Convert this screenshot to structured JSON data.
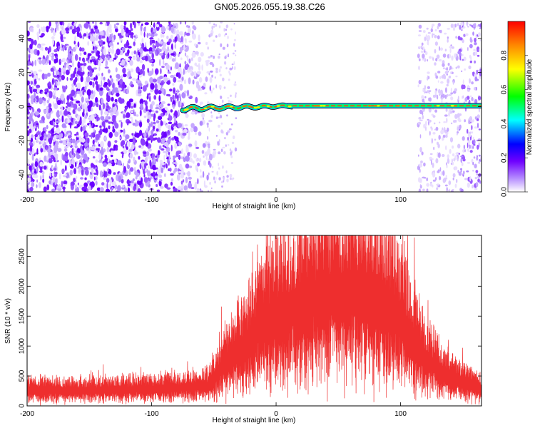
{
  "title": "GN05.2026.055.19.38.C26",
  "chart_data": [
    {
      "type": "heatmap",
      "xlabel": "Height of straight line (km)",
      "ylabel": "Frequency (Hz)",
      "xlim": [
        -200,
        165
      ],
      "ylim": [
        -50,
        50
      ],
      "xticks": [
        -200,
        -100,
        0,
        100
      ],
      "yticks": [
        -40,
        -20,
        0,
        20,
        40
      ],
      "colorbar": {
        "label": "Normalized spectral amplitude",
        "range": [
          0,
          1
        ],
        "ticks": [
          "0.0",
          "0.2",
          "0.4",
          "0.6",
          "0.8"
        ],
        "colors": [
          "#ffffff",
          "#6f00ff",
          "#0000ff",
          "#00ffff",
          "#00ff00",
          "#ffff00",
          "#ff0000"
        ]
      },
      "features": {
        "noise_region_km": [
          -200,
          -55
        ],
        "noise_right_region_km": [
          120,
          165
        ],
        "carrier_start_km": -75,
        "carrier_frequency_hz": 0.5
      }
    },
    {
      "type": "line",
      "xlabel": "Height of straight line (km)",
      "ylabel": "SNR (10 * v/v)",
      "xlim": [
        -200,
        165
      ],
      "ylim": [
        0,
        2850
      ],
      "xticks": [
        -200,
        -100,
        0,
        100
      ],
      "yticks": [
        0,
        500,
        1000,
        1500,
        2000,
        2500
      ],
      "color": "#ee3333",
      "envelope": {
        "x": [
          -200,
          -150,
          -100,
          -70,
          -55,
          -45,
          -35,
          -25,
          -15,
          -5,
          5,
          20,
          40,
          60,
          80,
          100,
          120,
          140,
          165
        ],
        "y": [
          300,
          300,
          330,
          360,
          400,
          700,
          1000,
          1200,
          1500,
          1700,
          1850,
          2000,
          2150,
          2250,
          2200,
          1700,
          900,
          550,
          350
        ]
      }
    }
  ]
}
